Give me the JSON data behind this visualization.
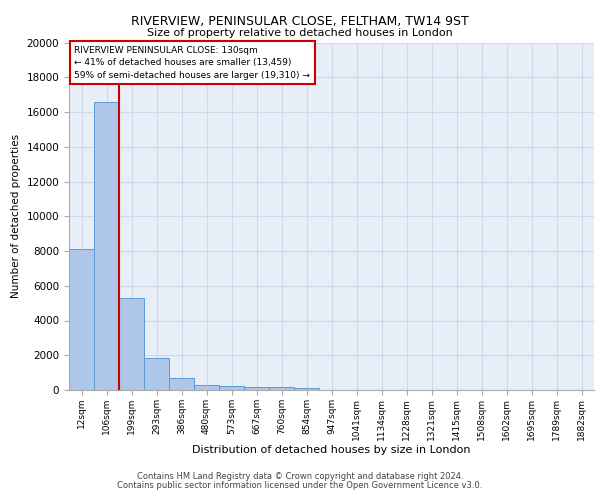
{
  "title1": "RIVERVIEW, PENINSULAR CLOSE, FELTHAM, TW14 9ST",
  "title2": "Size of property relative to detached houses in London",
  "xlabel": "Distribution of detached houses by size in London",
  "ylabel": "Number of detached properties",
  "categories": [
    "12sqm",
    "106sqm",
    "199sqm",
    "293sqm",
    "386sqm",
    "480sqm",
    "573sqm",
    "667sqm",
    "760sqm",
    "854sqm",
    "947sqm",
    "1041sqm",
    "1134sqm",
    "1228sqm",
    "1321sqm",
    "1415sqm",
    "1508sqm",
    "1602sqm",
    "1695sqm",
    "1789sqm",
    "1882sqm"
  ],
  "values": [
    8100,
    16600,
    5300,
    1850,
    700,
    310,
    220,
    195,
    185,
    130,
    0,
    0,
    0,
    0,
    0,
    0,
    0,
    0,
    0,
    0,
    0
  ],
  "bar_color": "#aec6e8",
  "bar_edge_color": "#5b9bd5",
  "grid_color": "#d0d8e8",
  "bg_color": "#e8eef8",
  "vline_color": "#cc0000",
  "vline_x": 1.5,
  "annotation_text": "RIVERVIEW PENINSULAR CLOSE: 130sqm\n← 41% of detached houses are smaller (13,459)\n59% of semi-detached houses are larger (19,310) →",
  "annotation_box_color": "#ffffff",
  "annotation_box_edge": "#cc0000",
  "ylim": [
    0,
    20000
  ],
  "yticks": [
    0,
    2000,
    4000,
    6000,
    8000,
    10000,
    12000,
    14000,
    16000,
    18000,
    20000
  ],
  "footer1": "Contains HM Land Registry data © Crown copyright and database right 2024.",
  "footer2": "Contains public sector information licensed under the Open Government Licence v3.0."
}
